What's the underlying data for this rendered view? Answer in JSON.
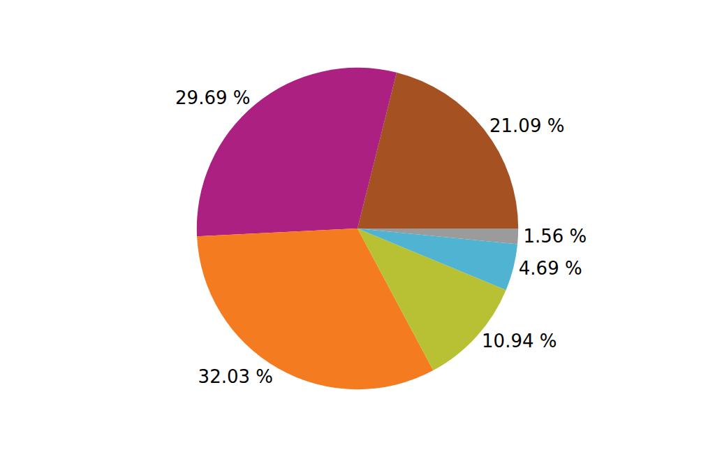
{
  "chart_data": {
    "type": "pie",
    "values": [
      1.56,
      21.09,
      29.69,
      32.03,
      10.94,
      4.69
    ],
    "value_labels": [
      "1.56 %",
      "21.09 %",
      "29.69 %",
      "32.03 %",
      "10.94 %",
      "4.69 %"
    ],
    "colors": [
      "#9b9b9b",
      "#a65122",
      "#ab2080",
      "#f47b20",
      "#b8c034",
      "#4fb3d1"
    ],
    "data_labels": true
  }
}
